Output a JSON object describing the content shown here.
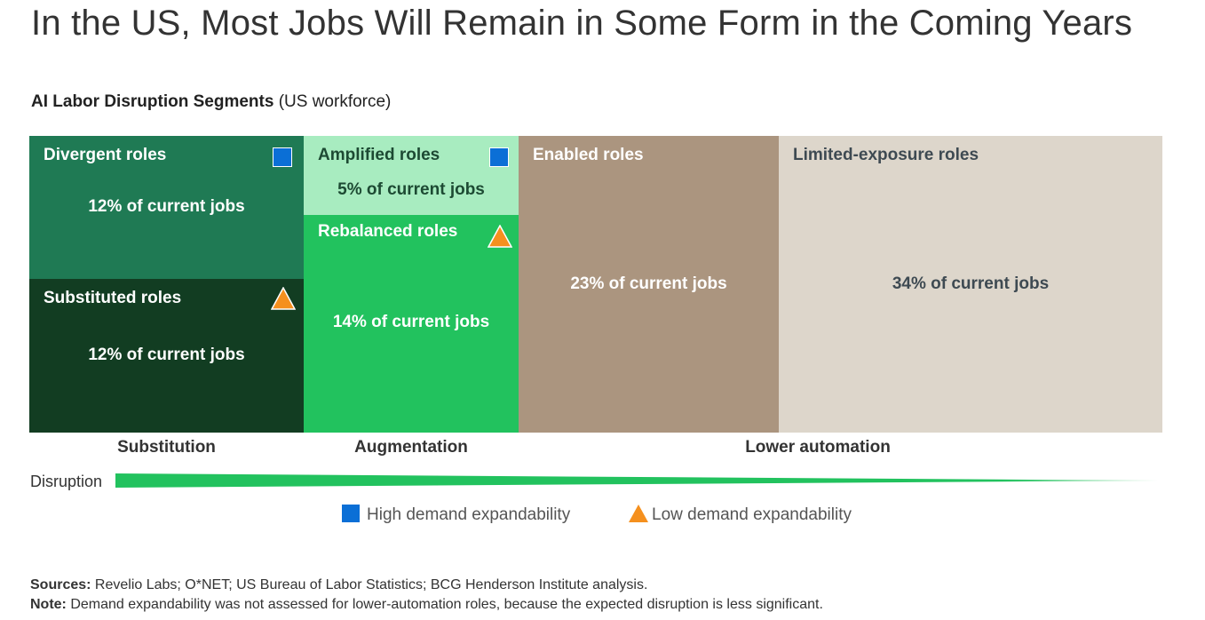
{
  "title": "In the US, Most Jobs Will Remain in Some Form in the Coming Years",
  "subtitle": {
    "bold": "AI Labor Disruption Segments",
    "rest": " (US workforce)"
  },
  "chart_data": {
    "type": "treemap",
    "unit": "% of current jobs",
    "segments": [
      {
        "name": "Divergent roles",
        "value": 12,
        "value_label": "12% of current jobs",
        "group": "Substitution",
        "demand_expandability": "High demand expandability",
        "color": "#1f7a54"
      },
      {
        "name": "Substituted roles",
        "value": 12,
        "value_label": "12% of current jobs",
        "group": "Substitution",
        "demand_expandability": "Low demand expandability",
        "color": "#123d22"
      },
      {
        "name": "Amplified roles",
        "value": 5,
        "value_label": "5% of current jobs",
        "group": "Augmentation",
        "demand_expandability": "High demand expandability",
        "color": "#a8ecc0"
      },
      {
        "name": "Rebalanced roles",
        "value": 14,
        "value_label": "14% of current jobs",
        "group": "Augmentation",
        "demand_expandability": "Low demand expandability",
        "color": "#22c25e"
      },
      {
        "name": "Enabled roles",
        "value": 23,
        "value_label": "23% of current jobs",
        "group": "Lower automation",
        "color": "#ab957f"
      },
      {
        "name": "Limited-exposure roles",
        "value": 34,
        "value_label": "34% of current jobs",
        "group": "Lower automation",
        "color": "#ddd6cb"
      }
    ],
    "groups": [
      "Substitution",
      "Augmentation",
      "Lower automation"
    ],
    "disruption_axis_label": "Disruption",
    "legend": [
      {
        "label": "High demand expandability",
        "marker": "square",
        "color": "#0b6fd6"
      },
      {
        "label": "Low demand expandability",
        "marker": "triangle",
        "color": "#f5901e"
      }
    ]
  },
  "footer": {
    "sources_label": "Sources:",
    "sources_text": " Revelio Labs; O*NET; US Bureau of Labor Statistics; BCG Henderson Institute analysis.",
    "note_label": "Note:",
    "note_text": " Demand expandability was not assessed for lower-automation roles, because the expected disruption is less significant."
  }
}
